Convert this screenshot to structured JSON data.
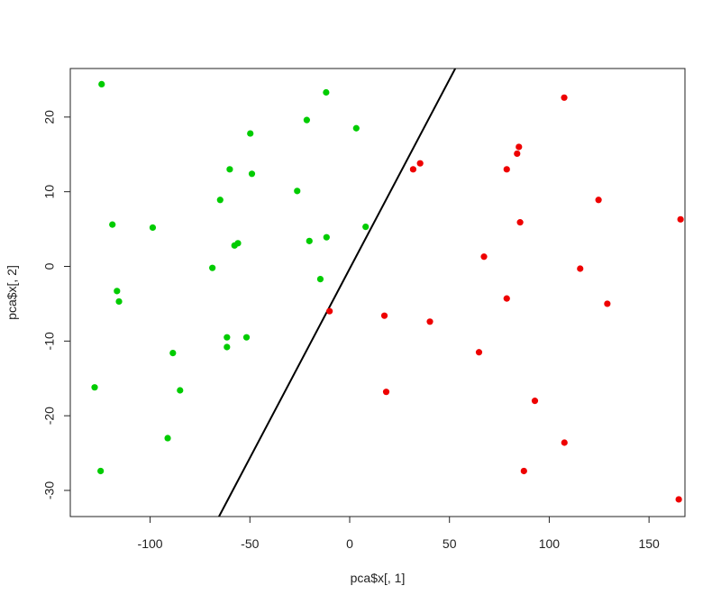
{
  "chart_data": {
    "type": "scatter",
    "title": "",
    "xlabel": "pca$x[, 1]",
    "ylabel": "pca$x[, 2]",
    "xlim": [
      -140,
      168
    ],
    "ylim": [
      -33.5,
      26.5
    ],
    "x_ticks": [
      -100,
      -50,
      0,
      50,
      100,
      150
    ],
    "x_tick_labels": [
      "-100",
      "-50",
      "0",
      "50",
      "100",
      "150"
    ],
    "y_ticks": [
      -30,
      -20,
      -10,
      0,
      10,
      20
    ],
    "y_tick_labels": [
      "-30",
      "-20",
      "-10",
      "0",
      "10",
      "20"
    ],
    "grid": false,
    "legend": "none",
    "series": [
      {
        "color": "#00cc00",
        "points": [
          [
            -124.3,
            24.4
          ],
          [
            -11.8,
            23.3
          ],
          [
            -21.5,
            19.6
          ],
          [
            -49.8,
            17.8
          ],
          [
            3.3,
            18.5
          ],
          [
            -60.1,
            13.0
          ],
          [
            -49.0,
            12.4
          ],
          [
            -64.9,
            8.9
          ],
          [
            -26.3,
            10.1
          ],
          [
            -118.9,
            5.6
          ],
          [
            -98.7,
            5.2
          ],
          [
            -20.2,
            3.4
          ],
          [
            -11.6,
            3.9
          ],
          [
            -57.7,
            2.8
          ],
          [
            -56.0,
            3.1
          ],
          [
            8.0,
            5.3
          ],
          [
            -68.8,
            -0.2
          ],
          [
            -116.6,
            -3.3
          ],
          [
            -115.6,
            -4.7
          ],
          [
            -14.7,
            -1.7
          ],
          [
            -61.5,
            -9.5
          ],
          [
            -51.7,
            -9.5
          ],
          [
            -61.5,
            -10.8
          ],
          [
            -88.6,
            -11.6
          ],
          [
            -127.8,
            -16.2
          ],
          [
            -85.0,
            -16.6
          ],
          [
            -91.2,
            -23.0
          ],
          [
            -124.8,
            -27.4
          ]
        ]
      },
      {
        "color": "#ee0000",
        "points": [
          [
            107.5,
            22.6
          ],
          [
            84.8,
            16.0
          ],
          [
            83.9,
            15.1
          ],
          [
            35.3,
            13.8
          ],
          [
            31.8,
            13.0
          ],
          [
            78.7,
            13.0
          ],
          [
            124.7,
            8.9
          ],
          [
            85.4,
            5.9
          ],
          [
            165.8,
            6.3
          ],
          [
            67.3,
            1.3
          ],
          [
            115.5,
            -0.3
          ],
          [
            78.7,
            -4.3
          ],
          [
            129.1,
            -5.0
          ],
          [
            -10.1,
            -6.0
          ],
          [
            17.4,
            -6.6
          ],
          [
            40.2,
            -7.4
          ],
          [
            64.8,
            -11.5
          ],
          [
            18.3,
            -16.8
          ],
          [
            92.8,
            -18.0
          ],
          [
            107.6,
            -23.6
          ],
          [
            87.3,
            -27.4
          ],
          [
            164.9,
            -31.2
          ]
        ]
      }
    ],
    "line": {
      "color": "#000000",
      "x": [
        -65.5,
        52.9
      ],
      "y": [
        -33.5,
        26.5
      ]
    }
  }
}
